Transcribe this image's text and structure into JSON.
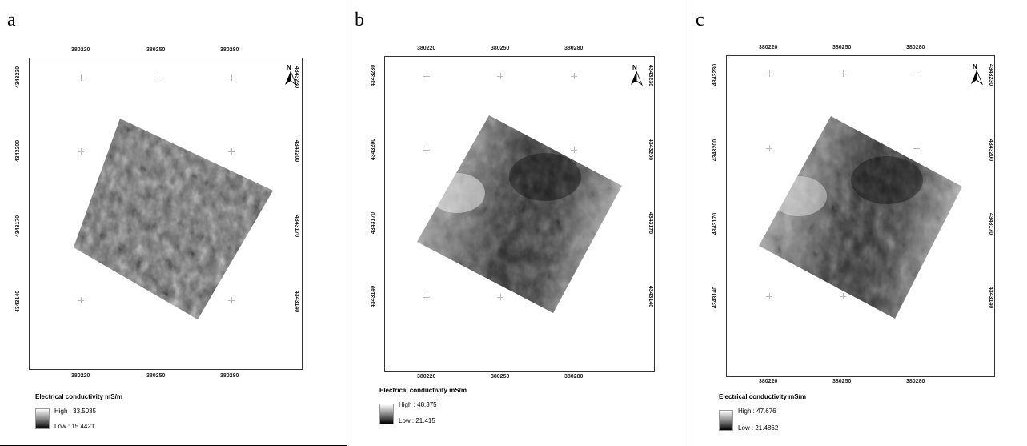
{
  "panels": [
    {
      "letter": "a",
      "x_ticks": [
        "380220",
        "380250",
        "380280"
      ],
      "y_ticks": [
        "4343230",
        "4343200",
        "4343170",
        "4343140"
      ],
      "north_label": "N",
      "legend": {
        "title": "Electrical conductivity mS/m",
        "high": "High : 33.5035",
        "low": "Low : 15.4421"
      },
      "pattern": "uniform"
    },
    {
      "letter": "b",
      "x_ticks": [
        "380220",
        "380250",
        "380280"
      ],
      "y_ticks": [
        "4343230",
        "4343200",
        "4343170",
        "4343140"
      ],
      "north_label": "N",
      "legend": {
        "title": "Electrical conductivity mS/m",
        "high": "High : 48.375",
        "low": "Low : 21.415"
      },
      "pattern": "banded"
    },
    {
      "letter": "c",
      "x_ticks": [
        "380220",
        "380250",
        "380280"
      ],
      "y_ticks": [
        "4343230",
        "4343200",
        "4343170",
        "4343140"
      ],
      "north_label": "N",
      "legend": {
        "title": "Electrical conductivity mS/m",
        "high": "High : 47.676",
        "low": "Low : 21.4862"
      },
      "pattern": "banded"
    }
  ],
  "colors": {
    "ramp_high": "#ffffff",
    "ramp_low": "#000000",
    "frame": "#333333"
  }
}
